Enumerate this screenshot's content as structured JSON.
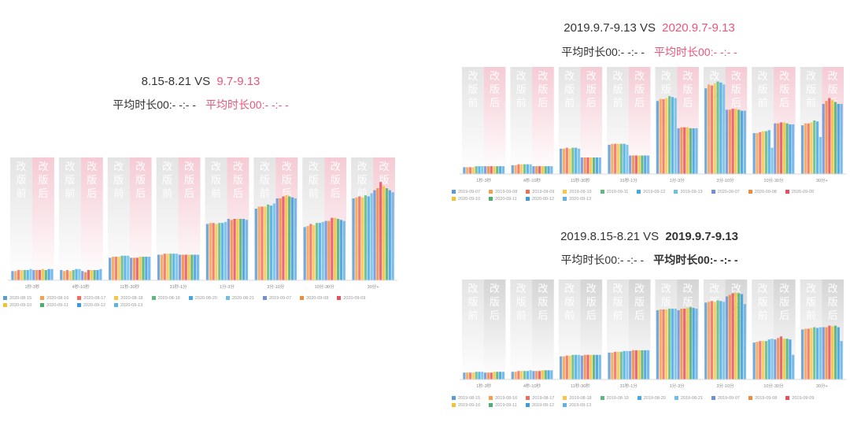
{
  "colors": {
    "highlight_pink": "#e8577a",
    "palette": [
      "#5b9bd5",
      "#f6a04d",
      "#f26b5b",
      "#f7c744",
      "#5fb87f",
      "#45a9e8",
      "#6cc0e5",
      "#6f8fd8",
      "#f08a3c",
      "#e84f5e",
      "#f2c230",
      "#4caf6e",
      "#3a9be0",
      "#5fb2e8"
    ]
  },
  "charts": [
    {
      "id": "left",
      "title_prefix": "8.15-8.21 VS ",
      "title_highlight": "9.7-9.13",
      "subtitle_prefix": "平均时长00:- -:- -",
      "subtitle_highlight": "平均时长00:- -:- -",
      "bands": {
        "before": [
          "改",
          "版",
          "前"
        ],
        "after": [
          "改",
          "版",
          "后"
        ],
        "before_color": "#e4e4e4",
        "after_color": "#f5cbd4"
      },
      "highlight_color": "#e8577a",
      "bold_highlight": false,
      "chart_data": {
        "type": "bar",
        "categories": [
          "1秒-3秒",
          "4秒-10秒",
          "11秒-30秒",
          "31秒-1分",
          "1分-3分",
          "3分-10分",
          "10分-30分",
          "30分+"
        ],
        "ylim": [
          0,
          120
        ],
        "series": [
          {
            "name": "2020-08-15",
            "values": [
              9,
              10,
              22,
              25,
              55,
              70,
              52,
              80
            ]
          },
          {
            "name": "2020-08-16",
            "values": [
              9,
              9,
              23,
              25,
              56,
              72,
              53,
              81
            ]
          },
          {
            "name": "2020-08-17",
            "values": [
              10,
              10,
              23,
              26,
              56,
              72,
              55,
              82
            ]
          },
          {
            "name": "2020-08-18",
            "values": [
              10,
              9,
              23,
              26,
              55,
              72,
              54,
              81
            ]
          },
          {
            "name": "2020-08-19",
            "values": [
              10,
              10,
              24,
              26,
              56,
              74,
              56,
              83
            ]
          },
          {
            "name": "2020-08-20",
            "values": [
              10,
              11,
              24,
              26,
              56,
              73,
              56,
              82
            ]
          },
          {
            "name": "2020-08-21",
            "values": [
              11,
              11,
              24,
              26,
              57,
              75,
              57,
              85
            ]
          },
          {
            "name": "2019-09-07",
            "values": [
              10,
              9,
              22,
              25,
              60,
              80,
              58,
              88
            ]
          },
          {
            "name": "2020-09-08",
            "values": [
              10,
              8,
              22,
              25,
              59,
              80,
              58,
              90
            ]
          },
          {
            "name": "2020-09-09",
            "values": [
              10,
              10,
              22,
              25,
              60,
              82,
              61,
              96
            ]
          },
          {
            "name": "2020-09-10",
            "values": [
              11,
              10,
              23,
              25,
              60,
              83,
              61,
              92
            ]
          },
          {
            "name": "2020-09-11",
            "values": [
              10,
              10,
              23,
              25,
              60,
              82,
              60,
              90
            ]
          },
          {
            "name": "2020-09-12",
            "values": [
              11,
              10,
              23,
              25,
              60,
              81,
              59,
              88
            ]
          },
          {
            "name": "2020-09-13",
            "values": [
              11,
              11,
              23,
              25,
              59,
              80,
              58,
              86
            ]
          }
        ]
      }
    },
    {
      "id": "right-top",
      "title_prefix": "2019.9.7-9.13 VS ",
      "title_highlight": "2020.9.7-9.13",
      "subtitle_prefix": "平均时长00:- -:- -",
      "subtitle_highlight": "平均时长00:- -:- -",
      "bands": {
        "before": [
          "改",
          "版",
          "前"
        ],
        "after": [
          "改",
          "版",
          "后"
        ],
        "before_color": "#e4e4e4",
        "after_color": "#f5cbd4"
      },
      "highlight_color": "#e8577a",
      "bold_highlight": false,
      "chart_data": {
        "type": "bar",
        "categories": [
          "1秒-3秒",
          "4秒-10秒",
          "11秒-30秒",
          "31秒-1分",
          "1分-3分",
          "3分-10分",
          "10分-30分",
          "30分+"
        ],
        "ylim": [
          0,
          110
        ],
        "series": [
          {
            "name": "2019-09-07",
            "values": [
              7,
              9,
              26,
              30,
              75,
              88,
              42,
              50
            ]
          },
          {
            "name": "2019-09-08",
            "values": [
              7,
              9,
              26,
              31,
              77,
              92,
              42,
              52
            ]
          },
          {
            "name": "2019-09-09",
            "values": [
              7,
              10,
              27,
              31,
              77,
              91,
              43,
              52
            ]
          },
          {
            "name": "2019-09-10",
            "values": [
              7,
              10,
              26,
              31,
              78,
              93,
              44,
              53
            ]
          },
          {
            "name": "2019-09-11",
            "values": [
              8,
              10,
              27,
              31,
              80,
              95,
              44,
              55
            ]
          },
          {
            "name": "2019-09-12",
            "values": [
              8,
              10,
              27,
              31,
              79,
              94,
              45,
              54
            ]
          },
          {
            "name": "2019-09-13",
            "values": [
              8,
              10,
              26,
              30,
              78,
              92,
              27,
              38
            ]
          },
          {
            "name": "2020-09-07",
            "values": [
              8,
              8,
              17,
              19,
              47,
              66,
              52,
              72
            ]
          },
          {
            "name": "2020-09-08",
            "values": [
              8,
              8,
              17,
              19,
              48,
              66,
              52,
              75
            ]
          },
          {
            "name": "2020-09-09",
            "values": [
              8,
              8,
              17,
              19,
              48,
              67,
              53,
              78
            ]
          },
          {
            "name": "2020-09-10",
            "values": [
              8,
              8,
              17,
              19,
              48,
              67,
              53,
              76
            ]
          },
          {
            "name": "2020-09-11",
            "values": [
              8,
              8,
              17,
              19,
              47,
              66,
              52,
              74
            ]
          },
          {
            "name": "2020-09-12",
            "values": [
              8,
              8,
              17,
              19,
              47,
              65,
              51,
              72
            ]
          },
          {
            "name": "2020-09-13",
            "values": [
              8,
              8,
              17,
              19,
              47,
              65,
              51,
              72
            ]
          }
        ]
      }
    },
    {
      "id": "right-bottom",
      "title_prefix": "2019.8.15-8.21 VS ",
      "title_highlight": "2019.9.7-9.13",
      "subtitle_prefix": "平均时长00:- -:- -",
      "subtitle_highlight": "平均时长00:- -:- -",
      "bands": {
        "before": [
          "改",
          "版",
          "前"
        ],
        "after": [
          "改",
          "版",
          "后"
        ],
        "before_color": "#e4e4e4",
        "after_color": "#d5d5d5"
      },
      "highlight_color": "#333333",
      "bold_highlight": true,
      "chart_data": {
        "type": "bar",
        "categories": [
          "1秒-3秒",
          "4秒-10秒",
          "11秒-30秒",
          "31秒-1分",
          "1分-3分",
          "3分-10分",
          "10分-30分",
          "30分+"
        ],
        "ylim": [
          0,
          130
        ],
        "series": [
          {
            "name": "2019-08-15",
            "values": [
              9,
              10,
              30,
              35,
              90,
              100,
              48,
              65
            ]
          },
          {
            "name": "2019-08-16",
            "values": [
              9,
              10,
              30,
              35,
              91,
              101,
              49,
              66
            ]
          },
          {
            "name": "2019-08-17",
            "values": [
              9,
              11,
              31,
              36,
              91,
              102,
              50,
              66
            ]
          },
          {
            "name": "2019-08-18",
            "values": [
              9,
              11,
              31,
              36,
              91,
              101,
              50,
              67
            ]
          },
          {
            "name": "2019-08-19",
            "values": [
              10,
              11,
              32,
              36,
              92,
              103,
              50,
              68
            ]
          },
          {
            "name": "2019-08-20",
            "values": [
              10,
              11,
              32,
              37,
              92,
              102,
              52,
              67
            ]
          },
          {
            "name": "2019-08-21",
            "values": [
              10,
              12,
              32,
              37,
              92,
              101,
              53,
              68
            ]
          },
          {
            "name": "2019-09-07",
            "values": [
              9,
              11,
              31,
              37,
              90,
              108,
              52,
              68
            ]
          },
          {
            "name": "2019-09-08",
            "values": [
              9,
              11,
              32,
              38,
              92,
              110,
              54,
              68
            ]
          },
          {
            "name": "2019-09-09",
            "values": [
              9,
              11,
              32,
              38,
              92,
              112,
              56,
              70
            ]
          },
          {
            "name": "2019-09-10",
            "values": [
              10,
              12,
              32,
              38,
              93,
              113,
              53,
              69
            ]
          },
          {
            "name": "2019-09-11",
            "values": [
              10,
              12,
              32,
              38,
              94,
              112,
              53,
              70
            ]
          },
          {
            "name": "2019-09-12",
            "values": [
              10,
              12,
              32,
              38,
              93,
              111,
              52,
              68
            ]
          },
          {
            "name": "2019-09-13",
            "values": [
              10,
              12,
              32,
              38,
              92,
              98,
              32,
              50
            ]
          }
        ]
      }
    }
  ]
}
